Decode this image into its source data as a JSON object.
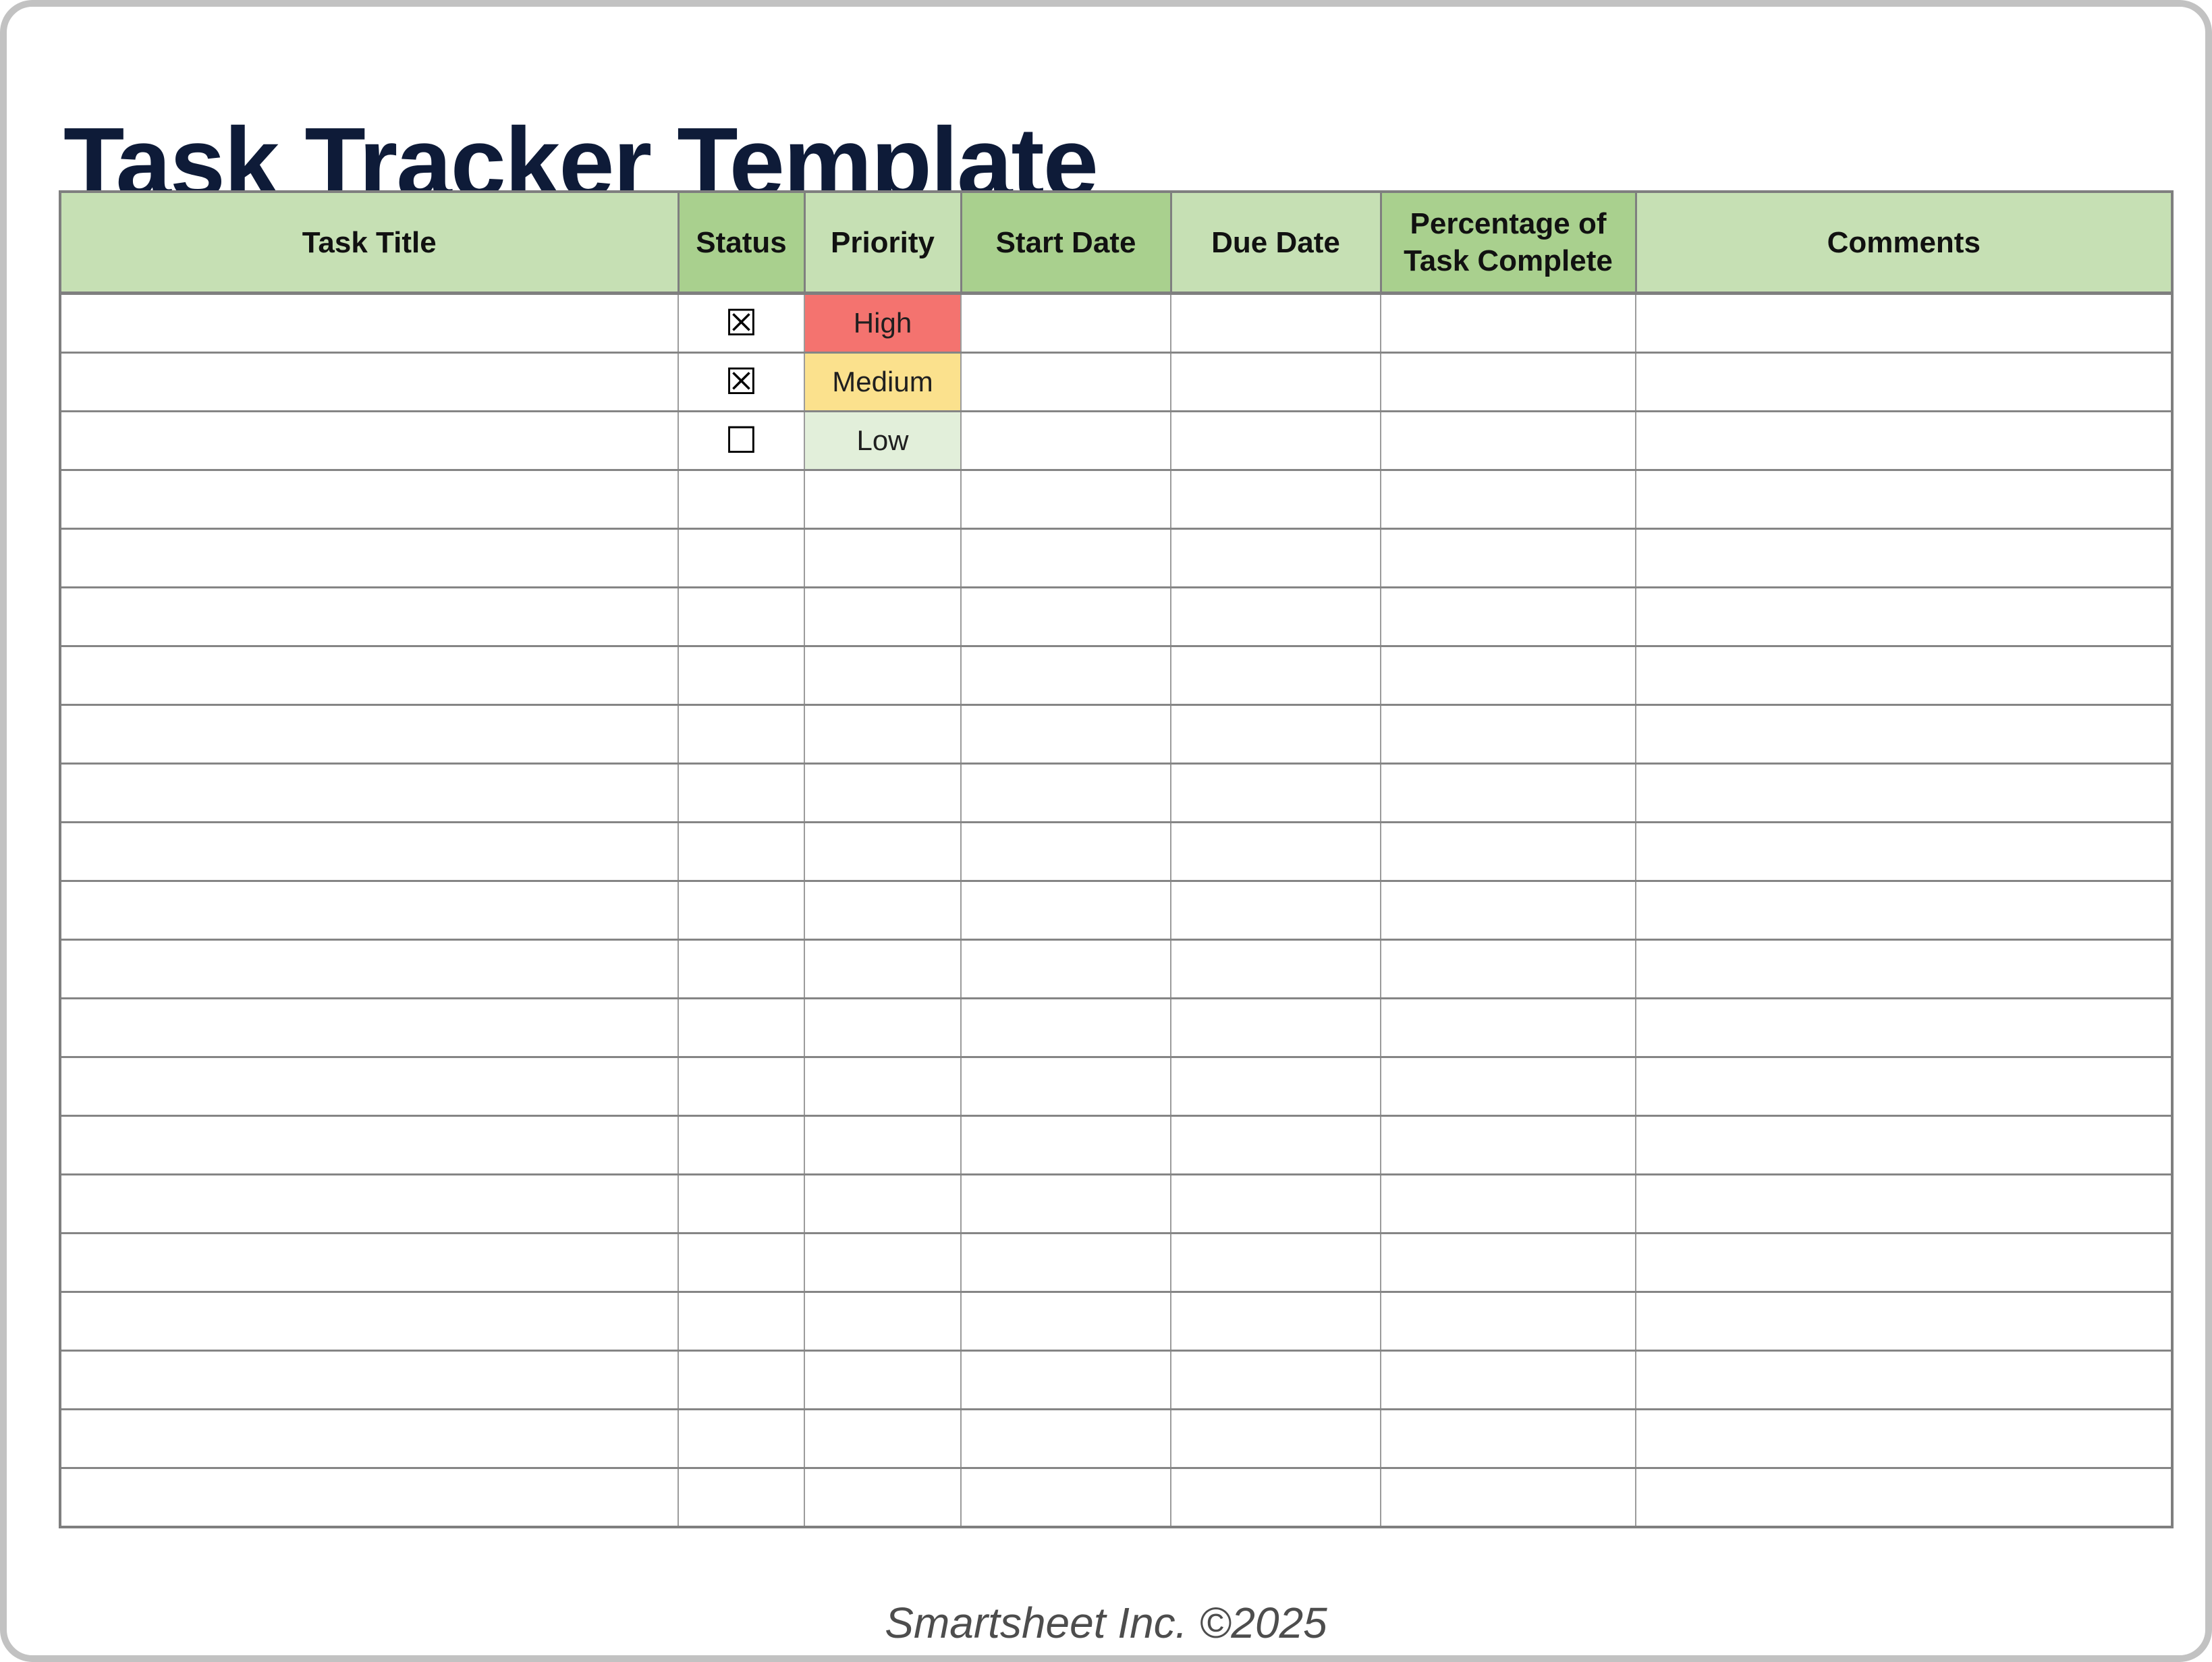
{
  "page": {
    "title": "Task Tracker Template",
    "footer": "Smartsheet Inc. ©2025"
  },
  "colors": {
    "title_text": "#0e1b38",
    "header_light_green": "#c6e0b4",
    "header_dark_green": "#a9d08e",
    "gridline": "#7f7f7f",
    "footer_text": "#4d4d4d",
    "priority_high": "#f4736f",
    "priority_medium": "#fbe18d",
    "priority_low": "#e2efda"
  },
  "symbols": {
    "checkbox_checked": "☒",
    "checkbox_unchecked": "☐"
  },
  "table": {
    "columns": [
      {
        "key": "task-title",
        "label": "Task Title",
        "shade": "light"
      },
      {
        "key": "status",
        "label": "Status",
        "shade": "dark"
      },
      {
        "key": "priority",
        "label": "Priority",
        "shade": "light"
      },
      {
        "key": "start-date",
        "label": "Start Date",
        "shade": "dark"
      },
      {
        "key": "due-date",
        "label": "Due Date",
        "shade": "light"
      },
      {
        "key": "pct-complete",
        "label": "Percentage of Task Complete",
        "shade": "dark"
      },
      {
        "key": "comments",
        "label": "Comments",
        "shade": "light"
      }
    ],
    "priority_colors": {
      "High": "#f4736f",
      "Medium": "#fbe18d",
      "Low": "#e2efda"
    },
    "rows": [
      {
        "task_title": "",
        "status_checked": true,
        "priority": "High",
        "start_date": "",
        "due_date": "",
        "pct_complete": "",
        "comments": ""
      },
      {
        "task_title": "",
        "status_checked": true,
        "priority": "Medium",
        "start_date": "",
        "due_date": "",
        "pct_complete": "",
        "comments": ""
      },
      {
        "task_title": "",
        "status_checked": false,
        "priority": "Low",
        "start_date": "",
        "due_date": "",
        "pct_complete": "",
        "comments": ""
      },
      {},
      {},
      {},
      {},
      {},
      {},
      {},
      {},
      {},
      {},
      {},
      {},
      {},
      {},
      {},
      {},
      {},
      {}
    ]
  }
}
